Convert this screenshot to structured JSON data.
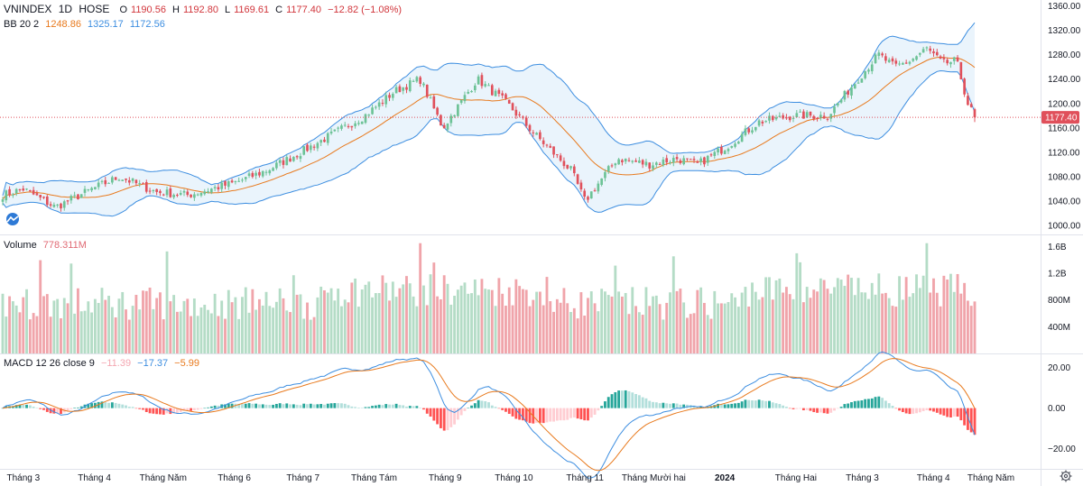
{
  "header": {
    "symbol": "VNINDEX",
    "interval": "1D",
    "exchange": "HOSE",
    "open_label": "O",
    "open": "1190.56",
    "high_label": "H",
    "high": "1192.80",
    "low_label": "L",
    "low": "1169.61",
    "close_label": "C",
    "close": "1177.40",
    "change": "−12.82 (−1.08%)"
  },
  "bb_legend": {
    "label": "BB 20 2",
    "basis": "1248.86",
    "upper": "1325.17",
    "lower": "1172.56"
  },
  "volume_legend": {
    "label": "Volume",
    "value": "778.311M"
  },
  "macd_legend": {
    "label": "MACD 12 26 close 9",
    "hist": "−11.39",
    "macd": "−17.37",
    "signal": "−5.99"
  },
  "price_axis": {
    "ticks": [
      "1360.00",
      "1320.00",
      "1280.00",
      "1240.00",
      "1200.00",
      "1160.00",
      "1120.00",
      "1080.00",
      "1040.00",
      "1000.00"
    ],
    "last_label": "1177.40"
  },
  "volume_axis": {
    "ticks": [
      "1.6B",
      "1.2B",
      "800M",
      "400M"
    ]
  },
  "macd_axis": {
    "ticks": [
      "20.00",
      "0.00",
      "−20.00"
    ]
  },
  "time_axis": {
    "labels": [
      "Tháng 3",
      "Tháng 4",
      "Tháng Năm",
      "Tháng 6",
      "Tháng 7",
      "Tháng Tám",
      "Tháng 9",
      "Tháng 10",
      "Tháng 11",
      "Tháng Mười hai",
      "2024",
      "Tháng Hai",
      "Tháng 3",
      "Tháng 4",
      "Tháng Năm"
    ]
  },
  "colors": {
    "up": "#6cc296",
    "down": "#e0505b",
    "up_vol": "#b4dcc6",
    "down_vol": "#f0a4aa",
    "bb_basis": "#e87a1e",
    "bb_band": "#3d8ee0",
    "bb_fill": "#eaf4fc",
    "macd": "#3d8ee0",
    "signal": "#e87a1e"
  },
  "chart_data": [
    {
      "type": "candlestick",
      "title": "VNINDEX 1D HOSE",
      "ylim": [
        990,
        1365
      ],
      "anchors": {
        "x": [
          "2023-02-20",
          "2023-03-01",
          "2023-03-15",
          "2023-03-31",
          "2023-04-12",
          "2023-04-28",
          "2023-05-12",
          "2023-06-01",
          "2023-06-15",
          "2023-06-30",
          "2023-07-14",
          "2023-07-28",
          "2023-08-10",
          "2023-08-21",
          "2023-08-31",
          "2023-09-15",
          "2023-09-28",
          "2023-10-10",
          "2023-10-26",
          "2023-11-01",
          "2023-11-15",
          "2023-11-29",
          "2023-12-11",
          "2023-12-20",
          "2024-01-02",
          "2024-01-16",
          "2024-01-31",
          "2024-02-15",
          "2024-02-28",
          "2024-03-08",
          "2024-03-15",
          "2024-03-22",
          "2024-03-29",
          "2024-04-05",
          "2024-04-11",
          "2024-04-16",
          "2024-04-19"
        ],
        "close": [
          1050,
          1060,
          1030,
          1060,
          1080,
          1055,
          1050,
          1070,
          1090,
          1120,
          1150,
          1180,
          1220,
          1240,
          1160,
          1240,
          1200,
          1150,
          1090,
          1040,
          1110,
          1100,
          1110,
          1100,
          1130,
          1170,
          1180,
          1180,
          1240,
          1280,
          1260,
          1270,
          1290,
          1265,
          1270,
          1200,
          1177.4
        ]
      }
    },
    {
      "type": "bar",
      "title": "Volume",
      "ylim": [
        0,
        1.7
      ],
      "unit": "B",
      "last_value": "778.311M"
    },
    {
      "type": "line",
      "title": "MACD 12 26 close 9",
      "ylim": [
        -30,
        27
      ],
      "series": [
        {
          "name": "MACD",
          "last": -17.37
        },
        {
          "name": "Signal",
          "last": -5.99
        },
        {
          "name": "Histogram",
          "last": -11.39
        }
      ]
    }
  ]
}
